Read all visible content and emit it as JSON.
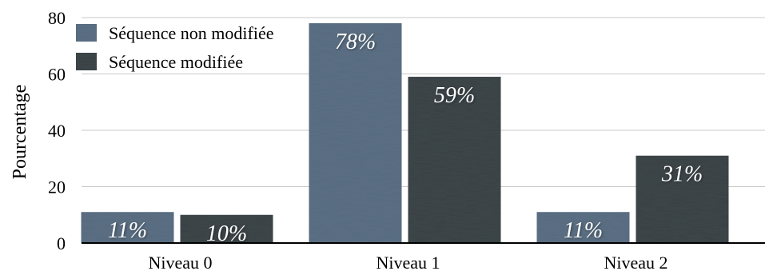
{
  "chart_data": {
    "type": "bar",
    "title": "",
    "xlabel": "",
    "ylabel": "Pourcentage",
    "ylim": [
      0,
      80
    ],
    "yticks": [
      0,
      20,
      40,
      60,
      80
    ],
    "grid": true,
    "legend_position": "top-left",
    "categories": [
      "Niveau 0",
      "Niveau 1",
      "Niveau 2"
    ],
    "series": [
      {
        "name": "Séquence non modifiée",
        "color": "#5b6f84",
        "values": [
          11,
          78,
          11
        ],
        "labels": [
          "11%",
          "78%",
          "11%"
        ]
      },
      {
        "name": "Séquence modifiée",
        "color": "#3d4548",
        "values": [
          10,
          59,
          31
        ],
        "labels": [
          "10%",
          "59%",
          "31%"
        ]
      }
    ]
  }
}
